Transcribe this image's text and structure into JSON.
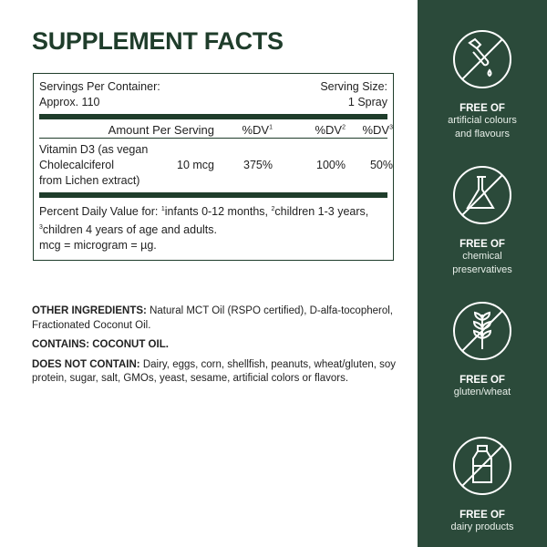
{
  "title": "SUPPLEMENT FACTS",
  "facts": {
    "servings_label": "Servings Per Container:",
    "servings_value": "Approx. 110",
    "size_label": "Serving Size:",
    "size_value": "1 Spray",
    "headers": [
      "Amount Per Serving",
      "%DV",
      "%DV",
      "%DV"
    ],
    "header_sups": [
      "1",
      "2",
      "3"
    ],
    "item": {
      "name_lines": [
        "Vitamin D3 (as vegan",
        "Cholecalciferol",
        "from Lichen extract)"
      ],
      "amount": "10 mcg",
      "dv": [
        "375%",
        "100%",
        "50%"
      ]
    },
    "footnote": {
      "prefix": "Percent Daily Value for: ",
      "s1": "1",
      "t1": "infants 0-12 months, ",
      "s2": "2",
      "t2": "children 1-3 years,",
      "s3": "3",
      "t3": "children 4 years of age and adults."
    },
    "unit_note": "mcg = microgram = µg."
  },
  "other": {
    "label": "OTHER INGREDIENTS:",
    "text": " Natural MCT Oil (RSPO certified), D-alfa-tocopherol, Fractionated Coconut Oil."
  },
  "contains": {
    "label": "CONTAINS: COCONUT OIL."
  },
  "not_contain": {
    "label": "DOES NOT CONTAIN:",
    "text": " Dairy, eggs, corn, shellfish, peanuts, wheat/gluten, soy protein, sugar, salt, GMOs, yeast, sesame, artificial colors or flavors."
  },
  "features": [
    {
      "icon": "dropper-icon",
      "heading": "FREE OF",
      "lines": [
        "artificial colours",
        "and flavours"
      ]
    },
    {
      "icon": "flask-icon",
      "heading": "FREE OF",
      "lines": [
        "chemical",
        "preservatives"
      ]
    },
    {
      "icon": "wheat-icon",
      "heading": "FREE OF",
      "lines": [
        "gluten/wheat"
      ]
    },
    {
      "icon": "milk-bottle-icon",
      "heading": "FREE OF",
      "lines": [
        "dairy products"
      ]
    }
  ],
  "colors": {
    "brand_green": "#1f3d2b",
    "sidebar": "#2b4a3a"
  }
}
